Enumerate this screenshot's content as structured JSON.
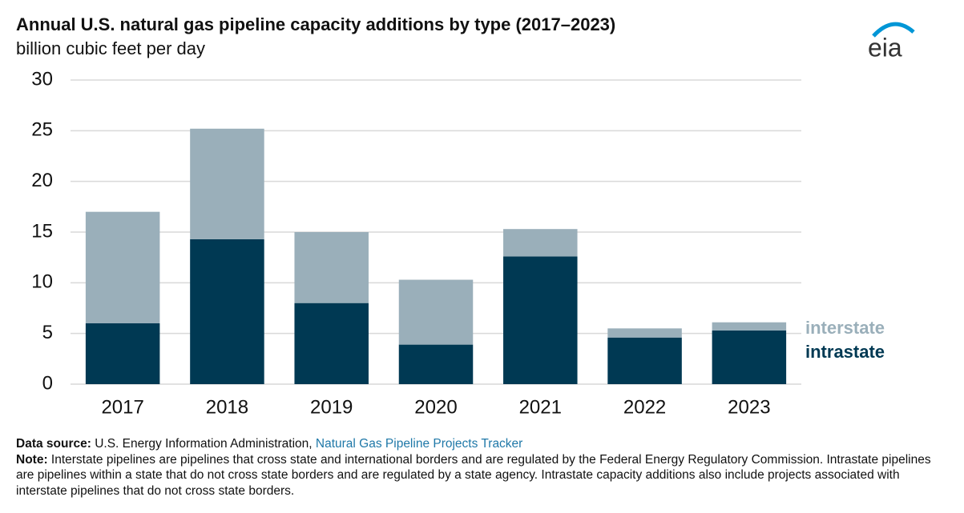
{
  "chart_data": {
    "type": "stacked-bar",
    "title": "Annual U.S. natural gas pipeline capacity additions by type (2017–2023)",
    "subtitle": "billion cubic feet per day",
    "categories": [
      "2017",
      "2018",
      "2019",
      "2020",
      "2021",
      "2022",
      "2023"
    ],
    "series": [
      {
        "name": "intrastate",
        "color": "#003953",
        "values": [
          6.0,
          14.3,
          8.0,
          3.9,
          12.6,
          4.6,
          5.3
        ]
      },
      {
        "name": "interstate",
        "color": "#9aafba",
        "values": [
          11.0,
          10.9,
          7.0,
          6.4,
          2.7,
          0.9,
          0.8
        ]
      }
    ],
    "ylim": [
      0,
      30
    ],
    "yticks": [
      0,
      5,
      10,
      15,
      20,
      25,
      30
    ],
    "grid": true
  },
  "logo": "eia",
  "footer": {
    "source_label": "Data source:",
    "source_text": "U.S. Energy Information Administration,",
    "source_link": "Natural Gas Pipeline Projects Tracker",
    "note_label": "Note:",
    "note_text": "Interstate pipelines are pipelines that cross state and international borders and are regulated by the Federal Energy Regulatory Commission. Intrastate pipelines are pipelines within a state that do not cross state borders and are regulated by a state agency. Intrastate capacity additions also include projects associated with interstate pipelines that do not cross state borders."
  }
}
